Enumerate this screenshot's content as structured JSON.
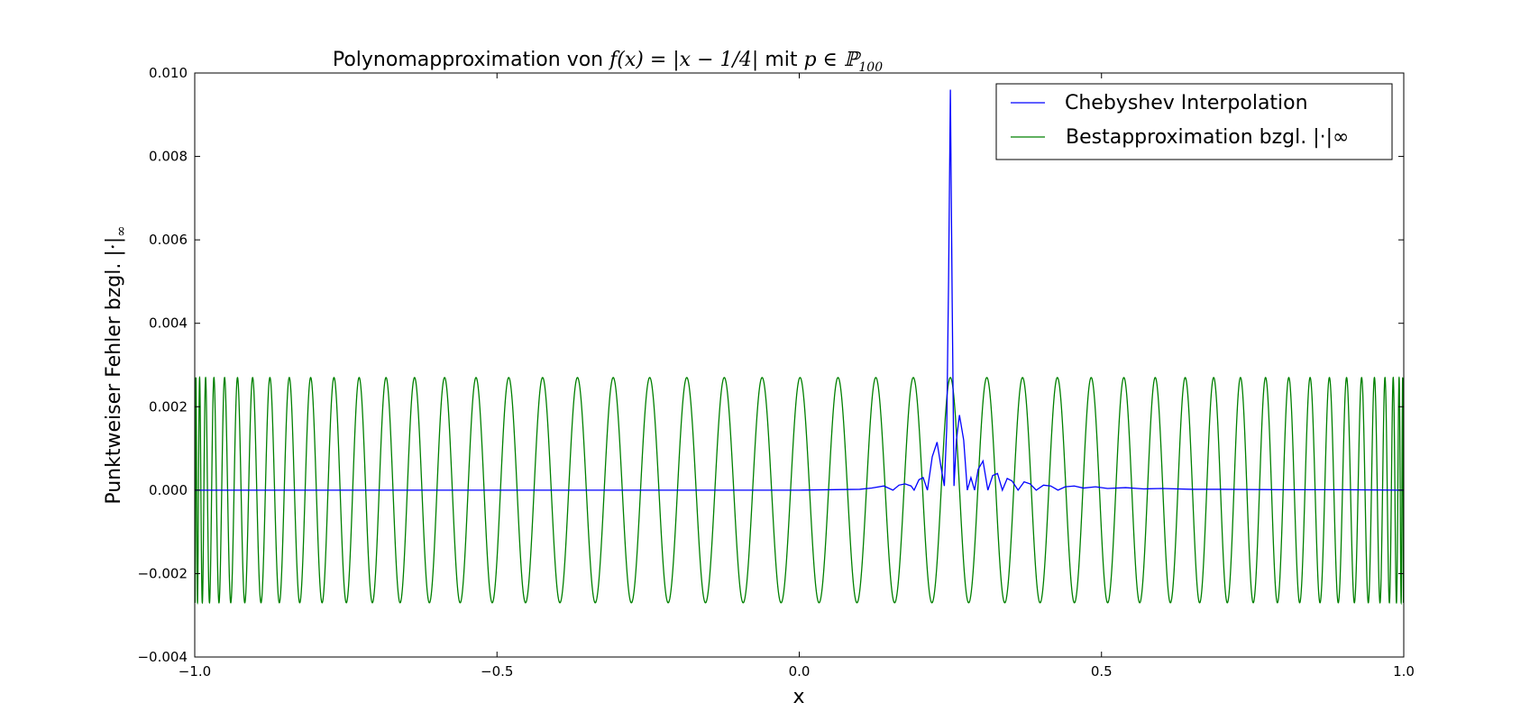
{
  "chart_data": {
    "type": "line",
    "title": {
      "prefix": "Polynomapproximation von ",
      "math1": "f(x) = |x − 1/4|",
      "middle": " mit ",
      "math2": "p ∈ ℙ",
      "math2_sub": "100"
    },
    "xlabel": "x",
    "ylabel": {
      "text": "Punktweiser Fehler bzgl. ",
      "math": "|·|",
      "sub": "∞"
    },
    "xlim": [
      -1.0,
      1.0
    ],
    "ylim": [
      -0.004,
      0.01
    ],
    "x_ticks": [
      -1.0,
      -0.5,
      0.0,
      0.5,
      1.0
    ],
    "x_tick_labels": [
      "−1.0",
      "−0.5",
      "0.0",
      "0.5",
      "1.0"
    ],
    "y_ticks": [
      -0.004,
      -0.002,
      0.0,
      0.002,
      0.004,
      0.006,
      0.008,
      0.01
    ],
    "y_tick_labels": [
      "−0.004",
      "−0.002",
      "0.000",
      "0.002",
      "0.004",
      "0.006",
      "0.008",
      "0.010"
    ],
    "grid": false,
    "legend_position": "top-right",
    "series": [
      {
        "name": "Chebyshev Interpolation",
        "color": "#0000ff",
        "x": [
          -1.0,
          -0.5,
          0.0,
          0.1,
          0.12,
          0.14,
          0.155,
          0.165,
          0.175,
          0.185,
          0.19,
          0.198,
          0.205,
          0.212,
          0.22,
          0.228,
          0.234,
          0.24,
          0.244,
          0.247,
          0.25,
          0.253,
          0.256,
          0.26,
          0.265,
          0.272,
          0.278,
          0.284,
          0.29,
          0.296,
          0.304,
          0.312,
          0.32,
          0.328,
          0.336,
          0.344,
          0.352,
          0.362,
          0.372,
          0.382,
          0.392,
          0.404,
          0.416,
          0.428,
          0.44,
          0.455,
          0.47,
          0.49,
          0.51,
          0.54,
          0.57,
          0.6,
          0.65,
          0.7,
          0.8,
          0.9,
          1.0
        ],
        "y": [
          0.0,
          0.0,
          0.0,
          2e-05,
          5e-05,
          0.0001,
          0.0,
          0.00012,
          0.00015,
          0.0001,
          0.0,
          0.00025,
          0.0003,
          0.0,
          0.0008,
          0.00115,
          0.0006,
          0.0001,
          0.0015,
          0.005,
          0.0096,
          0.0045,
          0.0001,
          0.0012,
          0.0018,
          0.0012,
          0.0,
          0.0003,
          0.0,
          0.0005,
          0.0007,
          0.0,
          0.00035,
          0.0004,
          0.0,
          0.00028,
          0.00022,
          0.0,
          0.0002,
          0.00015,
          0.0,
          0.00012,
          0.0001,
          0.0,
          8e-05,
          0.0001,
          5e-05,
          8e-05,
          4e-05,
          6e-05,
          3e-05,
          4e-05,
          2e-05,
          2e-05,
          1e-05,
          1e-05,
          0.0
        ]
      },
      {
        "name": "Bestapproximation bzgl. |·|∞",
        "color": "#008000",
        "amplitude": 0.0027,
        "degree": 100,
        "peak_near_x": 0.25
      }
    ]
  }
}
